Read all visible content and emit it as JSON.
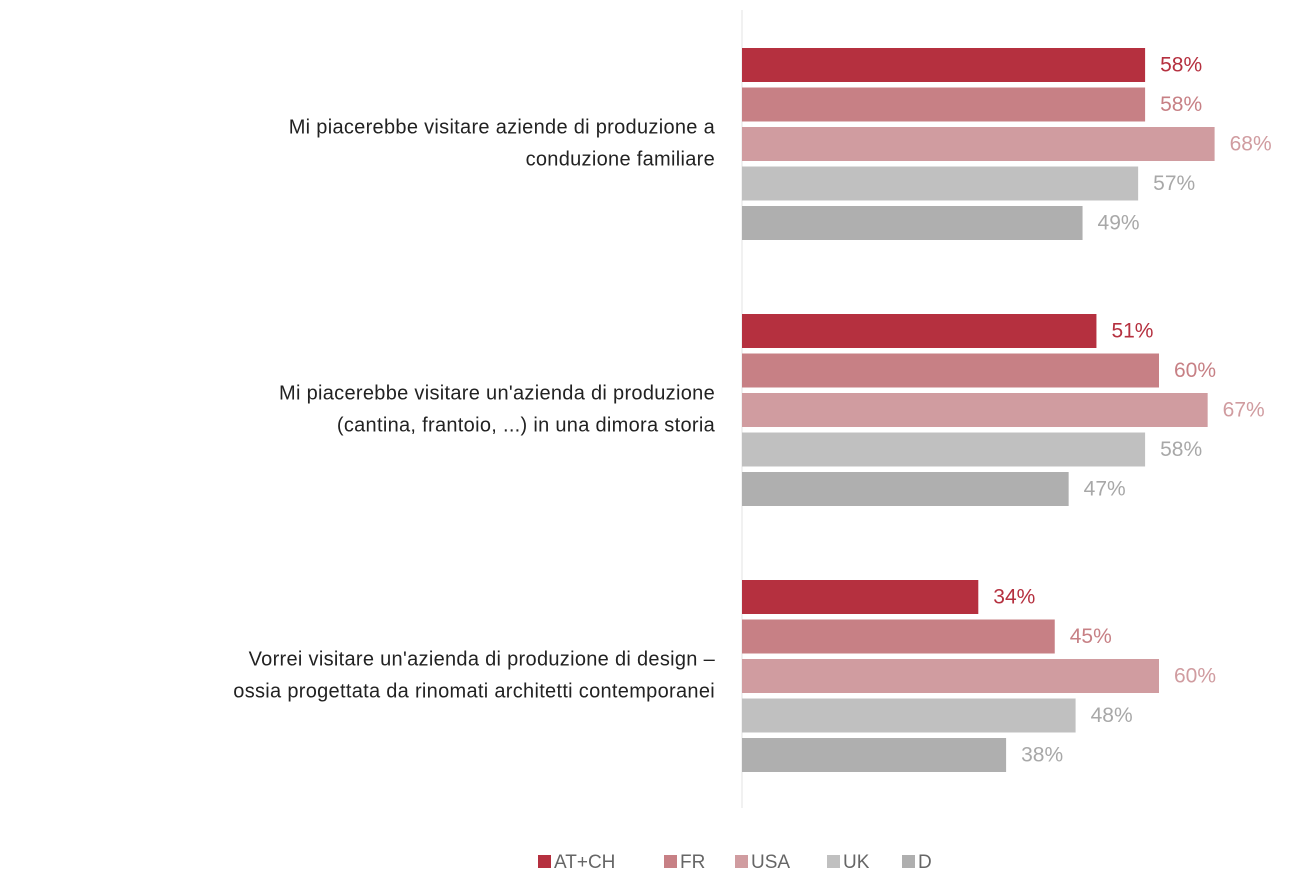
{
  "chart_data": {
    "type": "bar",
    "orientation": "horizontal",
    "categories": [
      [
        "Mi piacerebbe visitare aziende di produzione a",
        "conduzione familiare"
      ],
      [
        "Mi piacerebbe visitare un'azienda di produzione",
        "(cantina, frantoio, ...) in una dimora storia"
      ],
      [
        "Vorrei visitare un'azienda di produzione di design –",
        "ossia progettata da rinomati architetti contemporanei"
      ]
    ],
    "series": [
      {
        "name": "AT+CH",
        "color": "#b5303f",
        "values": [
          58,
          51,
          34
        ],
        "value_labels": [
          "58%",
          "51%",
          "34%"
        ]
      },
      {
        "name": "FR",
        "color": "#c78085",
        "values": [
          58,
          60,
          45
        ],
        "value_labels": [
          "58%",
          "60%",
          "45%"
        ]
      },
      {
        "name": "USA",
        "color": "#d09ca0",
        "values": [
          68,
          67,
          60
        ],
        "value_labels": [
          "68%",
          "67%",
          "60%"
        ]
      },
      {
        "name": "UK",
        "color": "#c0c0c0",
        "values": [
          57,
          58,
          48
        ],
        "value_labels": [
          "57%",
          "58%",
          "48%"
        ]
      },
      {
        "name": "D",
        "color": "#afafaf",
        "values": [
          49,
          47,
          38
        ],
        "value_labels": [
          "49%",
          "47%",
          "38%"
        ]
      }
    ],
    "legend": "bottom"
  }
}
